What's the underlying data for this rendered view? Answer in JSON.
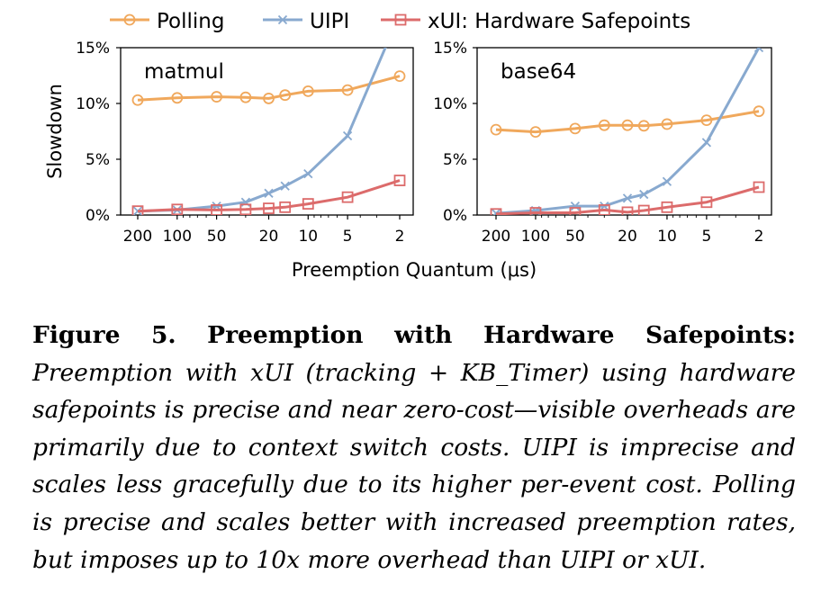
{
  "chart_data": {
    "type": "line",
    "xlabel": "Preemption Quantum (μs)",
    "ylabel": "Slowdown",
    "x_ticks": [
      "200",
      "100",
      "50",
      "20",
      "10",
      "5",
      "2"
    ],
    "x_scale": "log",
    "x_reversed": true,
    "xlim": [
      250,
      1.75
    ],
    "y_ticks": [
      "0%",
      "5%",
      "10%",
      "15%"
    ],
    "ylim": [
      0,
      15
    ],
    "legend_position": "top",
    "legend": [
      {
        "name": "Polling",
        "marker": "circle",
        "color": "#f0a85c"
      },
      {
        "name": "UIPI",
        "marker": "x",
        "color": "#88a9cf"
      },
      {
        "name": "xUI: Hardware Safepoints",
        "marker": "square",
        "color": "#dc6b6b"
      }
    ],
    "panels": [
      {
        "title": "matmul",
        "series": [
          {
            "name": "Polling",
            "x": [
              200,
              100,
              50,
              30,
              20,
              15,
              10,
              5,
              2
            ],
            "y": [
              10.3,
              10.5,
              10.6,
              10.55,
              10.45,
              10.75,
              11.1,
              11.2,
              12.45
            ]
          },
          {
            "name": "UIPI",
            "x": [
              200,
              100,
              50,
              30,
              20,
              15,
              10,
              5,
              2
            ],
            "y": [
              0.35,
              0.45,
              0.8,
              1.15,
              1.95,
              2.6,
              3.7,
              7.1,
              18.0
            ]
          },
          {
            "name": "xUI: Hardware Safepoints",
            "x": [
              200,
              100,
              50,
              30,
              20,
              15,
              10,
              5,
              2
            ],
            "y": [
              0.35,
              0.5,
              0.45,
              0.5,
              0.6,
              0.7,
              1.0,
              1.6,
              3.1
            ]
          }
        ]
      },
      {
        "title": "base64",
        "series": [
          {
            "name": "Polling",
            "x": [
              200,
              100,
              50,
              30,
              20,
              15,
              10,
              5,
              2
            ],
            "y": [
              7.65,
              7.45,
              7.75,
              8.05,
              8.05,
              8.0,
              8.15,
              8.5,
              9.3
            ]
          },
          {
            "name": "UIPI",
            "x": [
              200,
              100,
              50,
              30,
              20,
              15,
              10,
              5,
              2
            ],
            "y": [
              0.15,
              0.4,
              0.8,
              0.8,
              1.5,
              1.85,
              3.0,
              6.5,
              15.0
            ]
          },
          {
            "name": "xUI: Hardware Safepoints",
            "x": [
              200,
              100,
              50,
              30,
              20,
              15,
              10,
              5,
              2
            ],
            "y": [
              0.1,
              0.2,
              0.2,
              0.45,
              0.25,
              0.4,
              0.7,
              1.15,
              2.5
            ]
          }
        ]
      }
    ]
  },
  "caption": {
    "heading": "Figure 5. Preemption with Hardware Safepoints:",
    "body": "Preemption with xUI (tracking + KB_Timer) using hardware safepoints is precise and near zero-cost—visible overheads are primarily due to context switch costs. UIPI is imprecise and scales less gracefully due to its higher per-event cost. Polling is precise and scales better with increased preemption rates, but imposes up to 10x more overhead than UIPI or xUI."
  }
}
